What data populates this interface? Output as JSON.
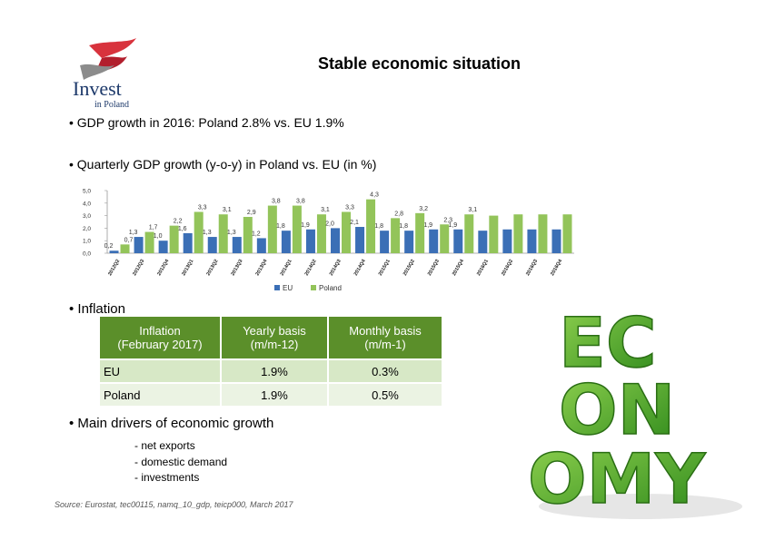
{
  "logo": {
    "word": "Invest",
    "sub": "in Poland"
  },
  "title": "Stable economic situation",
  "bullets": {
    "gdp2016": "• GDP growth in 2016: Poland 2.8% vs. EU 1.9%",
    "quarterly": "• Quarterly GDP growth (y-o-y) in Poland vs. EU (in %)",
    "inflation": "• Inflation",
    "drivers": "• Main drivers of economic growth"
  },
  "chart_data": {
    "type": "bar",
    "ylim": [
      0,
      5
    ],
    "yticks": [
      "0,0",
      "1,0",
      "2,0",
      "3,0",
      "4,0",
      "5,0"
    ],
    "categories": [
      "2012Q2",
      "2012Q3",
      "2012Q4",
      "2013Q1",
      "2013Q2",
      "2013Q3",
      "2013Q4",
      "2014Q1",
      "2014Q2",
      "2014Q3",
      "2014Q4",
      "2015Q1",
      "2015Q2",
      "2015Q3",
      "2015Q4",
      "2016Q1",
      "2016Q2",
      "2016Q3",
      "2016Q4"
    ],
    "series": [
      {
        "name": "EU",
        "color": "#3b6fb6",
        "values": [
          0.2,
          1.3,
          1.0,
          1.6,
          1.3,
          1.3,
          1.2,
          1.8,
          1.9,
          2.0,
          2.1,
          1.8,
          1.8,
          1.9,
          1.9,
          1.8,
          1.9,
          1.9,
          1.9
        ],
        "labels": [
          "0,2",
          "1,3",
          "1,0",
          "1,6",
          "1,3",
          "1,3",
          "1,2",
          "1,8",
          "1,9",
          "2,0",
          "2,1",
          "1,8",
          "1,8",
          "1,9",
          "1,9",
          "",
          "",
          "",
          ""
        ]
      },
      {
        "name": "Poland",
        "color": "#93c45a",
        "values": [
          0.7,
          1.7,
          2.2,
          3.3,
          3.1,
          2.9,
          3.8,
          3.8,
          3.1,
          3.3,
          4.3,
          2.8,
          3.2,
          2.3,
          3.1,
          3.0,
          3.1,
          3.1,
          3.1
        ],
        "labels": [
          "0,7",
          "1,7",
          "2,2",
          "3,3",
          "3,1",
          "2,9",
          "3,8",
          "3,8",
          "3,1",
          "3,3",
          "4,3",
          "2,8",
          "3,2",
          "2,3",
          "3,1",
          "",
          "",
          "",
          ""
        ]
      }
    ],
    "legend": [
      "EU",
      "Poland"
    ],
    "legend_position": "bottom"
  },
  "inflation_table": {
    "headers": [
      "Inflation\n(February 2017)",
      "Yearly basis\n(m/m-12)",
      "Monthly basis\n(m/m-1)"
    ],
    "rows": [
      {
        "label": "EU",
        "yearly": "1.9%",
        "monthly": "0.3%"
      },
      {
        "label": "Poland",
        "yearly": "1.9%",
        "monthly": "0.5%"
      }
    ]
  },
  "drivers": [
    "- net exports",
    "- domestic demand",
    "- investments"
  ],
  "source": "Source: Eurostat, tec00115, namq_10_gdp, teicp000, March 2017",
  "economy_letters": [
    "EC",
    "ON",
    "OMY"
  ]
}
